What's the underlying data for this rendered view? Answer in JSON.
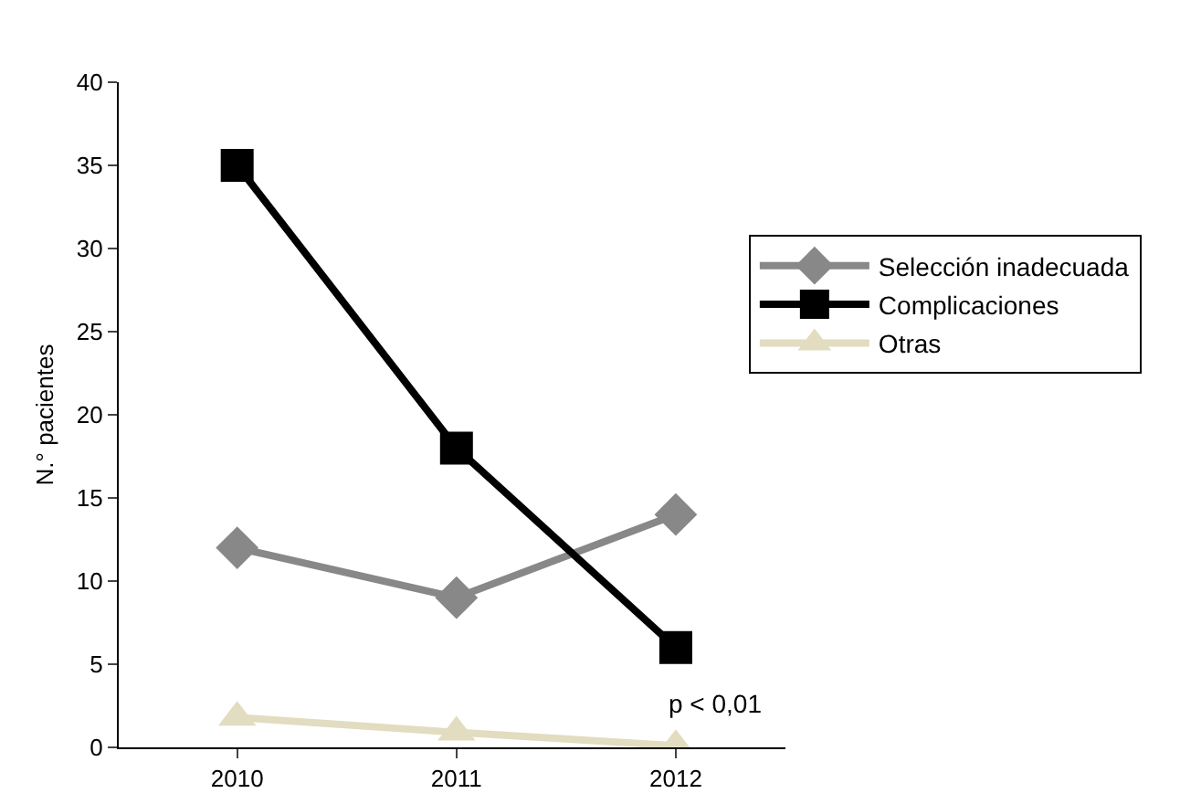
{
  "chart_data": {
    "type": "line",
    "ylabel": "N.° pacientes",
    "categories": [
      "2010",
      "2011",
      "2012"
    ],
    "ylim": [
      0,
      40
    ],
    "yticks": [
      0,
      5,
      10,
      15,
      20,
      25,
      30,
      35,
      40
    ],
    "grid": false,
    "legend": "right",
    "line_style": "solid",
    "series": [
      {
        "name": "Selección inadecuada",
        "color": "#888888",
        "marker": "diamond",
        "values": [
          12,
          9,
          14
        ]
      },
      {
        "name": "Complicaciones",
        "color": "#000000",
        "marker": "square",
        "values": [
          35,
          18,
          6
        ]
      },
      {
        "name": "Otras",
        "color": "#e2dcc0",
        "marker": "triangle",
        "values": [
          1.8,
          0.9,
          0.1
        ]
      }
    ],
    "annotations": [
      "p < 0,01"
    ]
  }
}
